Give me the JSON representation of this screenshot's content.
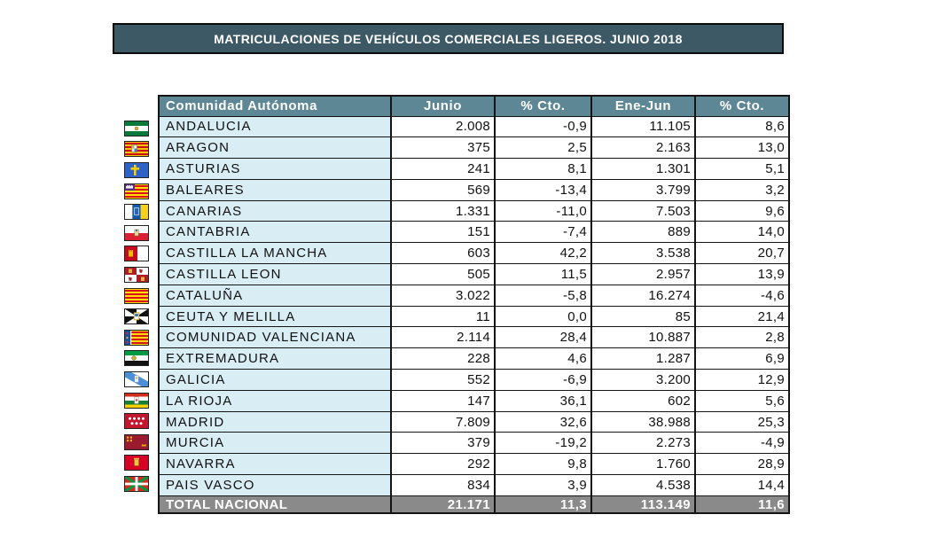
{
  "title": "MATRICULACIONES DE VEHÍCULOS COMERCIALES LIGEROS. JUNIO 2018",
  "columns": [
    "Comunidad Autónoma",
    "Junio",
    "% Cto.",
    "Ene-Jun",
    "% Cto."
  ],
  "rows": [
    {
      "flag": "flag-andalucia",
      "region": "ANDALUCIA",
      "junio": "2.008",
      "pct_junio": "-0,9",
      "ene_jun": "11.105",
      "pct_ene_jun": "8,6"
    },
    {
      "flag": "flag-aragon",
      "region": "ARAGON",
      "junio": "375",
      "pct_junio": "2,5",
      "ene_jun": "2.163",
      "pct_ene_jun": "13,0"
    },
    {
      "flag": "flag-asturias",
      "region": "ASTURIAS",
      "junio": "241",
      "pct_junio": "8,1",
      "ene_jun": "1.301",
      "pct_ene_jun": "5,1"
    },
    {
      "flag": "flag-baleares",
      "region": "BALEARES",
      "junio": "569",
      "pct_junio": "-13,4",
      "ene_jun": "3.799",
      "pct_ene_jun": "3,2"
    },
    {
      "flag": "flag-canarias",
      "region": "CANARIAS",
      "junio": "1.331",
      "pct_junio": "-11,0",
      "ene_jun": "7.503",
      "pct_ene_jun": "9,6"
    },
    {
      "flag": "flag-cantabria",
      "region": "CANTABRIA",
      "junio": "151",
      "pct_junio": "-7,4",
      "ene_jun": "889",
      "pct_ene_jun": "14,0"
    },
    {
      "flag": "flag-castilla-la-mancha",
      "region": "CASTILLA LA MANCHA",
      "junio": "603",
      "pct_junio": "42,2",
      "ene_jun": "3.538",
      "pct_ene_jun": "20,7"
    },
    {
      "flag": "flag-castilla-leon",
      "region": "CASTILLA LEON",
      "junio": "505",
      "pct_junio": "11,5",
      "ene_jun": "2.957",
      "pct_ene_jun": "13,9"
    },
    {
      "flag": "flag-cataluna",
      "region": "CATALUÑA",
      "junio": "3.022",
      "pct_junio": "-5,8",
      "ene_jun": "16.274",
      "pct_ene_jun": "-4,6"
    },
    {
      "flag": "flag-ceuta-melilla",
      "region": "CEUTA Y MELILLA",
      "junio": "11",
      "pct_junio": "0,0",
      "ene_jun": "85",
      "pct_ene_jun": "21,4"
    },
    {
      "flag": "flag-valenciana",
      "region": "COMUNIDAD VALENCIANA",
      "junio": "2.114",
      "pct_junio": "28,4",
      "ene_jun": "10.887",
      "pct_ene_jun": "2,8"
    },
    {
      "flag": "flag-extremadura",
      "region": "EXTREMADURA",
      "junio": "228",
      "pct_junio": "4,6",
      "ene_jun": "1.287",
      "pct_ene_jun": "6,9"
    },
    {
      "flag": "flag-galicia",
      "region": "GALICIA",
      "junio": "552",
      "pct_junio": "-6,9",
      "ene_jun": "3.200",
      "pct_ene_jun": "12,9"
    },
    {
      "flag": "flag-la-rioja",
      "region": "LA RIOJA",
      "junio": "147",
      "pct_junio": "36,1",
      "ene_jun": "602",
      "pct_ene_jun": "5,6"
    },
    {
      "flag": "flag-madrid",
      "region": "MADRID",
      "junio": "7.809",
      "pct_junio": "32,6",
      "ene_jun": "38.988",
      "pct_ene_jun": "25,3"
    },
    {
      "flag": "flag-murcia",
      "region": "MURCIA",
      "junio": "379",
      "pct_junio": "-19,2",
      "ene_jun": "2.273",
      "pct_ene_jun": "-4,9"
    },
    {
      "flag": "flag-navarra",
      "region": "NAVARRA",
      "junio": "292",
      "pct_junio": "9,8",
      "ene_jun": "1.760",
      "pct_ene_jun": "28,9"
    },
    {
      "flag": "flag-pais-vasco",
      "region": "PAIS VASCO",
      "junio": "834",
      "pct_junio": "3,9",
      "ene_jun": "4.538",
      "pct_ene_jun": "14,4"
    }
  ],
  "total": {
    "label": "TOTAL NACIONAL",
    "junio": "21.171",
    "pct_junio": "11,3",
    "ene_jun": "113.149",
    "pct_ene_jun": "11,6"
  },
  "colors": {
    "title_bar": "#3d5965",
    "header": "#5d8795",
    "region_cell": "#d9edf5",
    "total_row": "#8a8a8a",
    "border": "#141414",
    "text_light": "#ffffff",
    "text_dark": "#111111"
  },
  "chart_data": {
    "type": "table",
    "title": "MATRICULACIONES DE VEHÍCULOS COMERCIALES LIGEROS. JUNIO 2018",
    "columns": [
      "Comunidad Autónoma",
      "Junio",
      "% Cto.",
      "Ene-Jun",
      "% Cto."
    ],
    "rows": [
      {
        "region": "ANDALUCIA",
        "junio": 2008,
        "pct_cto_junio": -0.9,
        "ene_jun": 11105,
        "pct_cto_ene_jun": 8.6
      },
      {
        "region": "ARAGON",
        "junio": 375,
        "pct_cto_junio": 2.5,
        "ene_jun": 2163,
        "pct_cto_ene_jun": 13.0
      },
      {
        "region": "ASTURIAS",
        "junio": 241,
        "pct_cto_junio": 8.1,
        "ene_jun": 1301,
        "pct_cto_ene_jun": 5.1
      },
      {
        "region": "BALEARES",
        "junio": 569,
        "pct_cto_junio": -13.4,
        "ene_jun": 3799,
        "pct_cto_ene_jun": 3.2
      },
      {
        "region": "CANARIAS",
        "junio": 1331,
        "pct_cto_junio": -11.0,
        "ene_jun": 7503,
        "pct_cto_ene_jun": 9.6
      },
      {
        "region": "CANTABRIA",
        "junio": 151,
        "pct_cto_junio": -7.4,
        "ene_jun": 889,
        "pct_cto_ene_jun": 14.0
      },
      {
        "region": "CASTILLA LA MANCHA",
        "junio": 603,
        "pct_cto_junio": 42.2,
        "ene_jun": 3538,
        "pct_cto_ene_jun": 20.7
      },
      {
        "region": "CASTILLA LEON",
        "junio": 505,
        "pct_cto_junio": 11.5,
        "ene_jun": 2957,
        "pct_cto_ene_jun": 13.9
      },
      {
        "region": "CATALUÑA",
        "junio": 3022,
        "pct_cto_junio": -5.8,
        "ene_jun": 16274,
        "pct_cto_ene_jun": -4.6
      },
      {
        "region": "CEUTA Y MELILLA",
        "junio": 11,
        "pct_cto_junio": 0.0,
        "ene_jun": 85,
        "pct_cto_ene_jun": 21.4
      },
      {
        "region": "COMUNIDAD VALENCIANA",
        "junio": 2114,
        "pct_cto_junio": 28.4,
        "ene_jun": 10887,
        "pct_cto_ene_jun": 2.8
      },
      {
        "region": "EXTREMADURA",
        "junio": 228,
        "pct_cto_junio": 4.6,
        "ene_jun": 1287,
        "pct_cto_ene_jun": 6.9
      },
      {
        "region": "GALICIA",
        "junio": 552,
        "pct_cto_junio": -6.9,
        "ene_jun": 3200,
        "pct_cto_ene_jun": 12.9
      },
      {
        "region": "LA RIOJA",
        "junio": 147,
        "pct_cto_junio": 36.1,
        "ene_jun": 602,
        "pct_cto_ene_jun": 5.6
      },
      {
        "region": "MADRID",
        "junio": 7809,
        "pct_cto_junio": 32.6,
        "ene_jun": 38988,
        "pct_cto_ene_jun": 25.3
      },
      {
        "region": "MURCIA",
        "junio": 379,
        "pct_cto_junio": -19.2,
        "ene_jun": 2273,
        "pct_cto_ene_jun": -4.9
      },
      {
        "region": "NAVARRA",
        "junio": 292,
        "pct_cto_junio": 9.8,
        "ene_jun": 1760,
        "pct_cto_ene_jun": 28.9
      },
      {
        "region": "PAIS VASCO",
        "junio": 834,
        "pct_cto_junio": 3.9,
        "ene_jun": 4538,
        "pct_cto_ene_jun": 14.4
      }
    ],
    "total": {
      "region": "TOTAL NACIONAL",
      "junio": 21171,
      "pct_cto_junio": 11.3,
      "ene_jun": 113149,
      "pct_cto_ene_jun": 11.6
    }
  }
}
